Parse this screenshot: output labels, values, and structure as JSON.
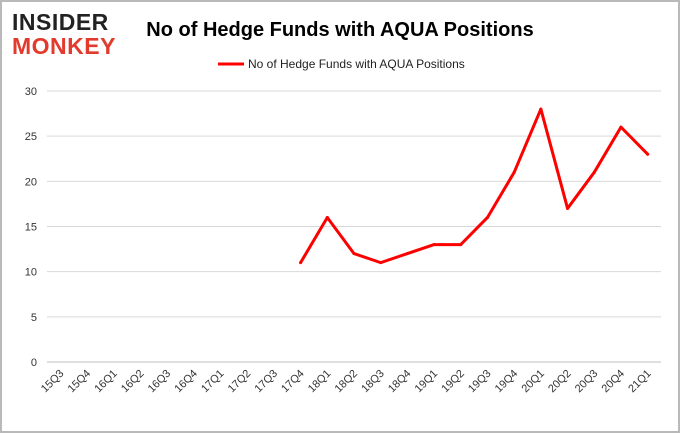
{
  "logo": {
    "line1": "INSIDER",
    "line2": "MONKEY"
  },
  "colors": {
    "series": "#ff0000",
    "grid": "#d9d9d9",
    "logo_accent": "#e23a2d"
  },
  "chart_data": {
    "type": "line",
    "title": "No of Hedge Funds with AQUA Positions",
    "xlabel": "",
    "ylabel": "",
    "categories": [
      "15Q3",
      "15Q4",
      "16Q1",
      "16Q2",
      "16Q3",
      "16Q4",
      "17Q1",
      "17Q2",
      "17Q3",
      "17Q4",
      "18Q1",
      "18Q2",
      "18Q3",
      "18Q4",
      "19Q1",
      "19Q2",
      "19Q3",
      "19Q4",
      "20Q1",
      "20Q2",
      "20Q3",
      "20Q4",
      "21Q1"
    ],
    "ylim": [
      0,
      30
    ],
    "yticks": [
      0,
      5,
      10,
      15,
      20,
      25,
      30
    ],
    "grid": "horizontal",
    "legend_position": "top",
    "series": [
      {
        "name": "No of Hedge Funds with AQUA Positions",
        "values": [
          null,
          null,
          null,
          null,
          null,
          null,
          null,
          null,
          null,
          11,
          16,
          12,
          11,
          12,
          13,
          13,
          16,
          21,
          28,
          17,
          21,
          26,
          23
        ]
      }
    ]
  }
}
